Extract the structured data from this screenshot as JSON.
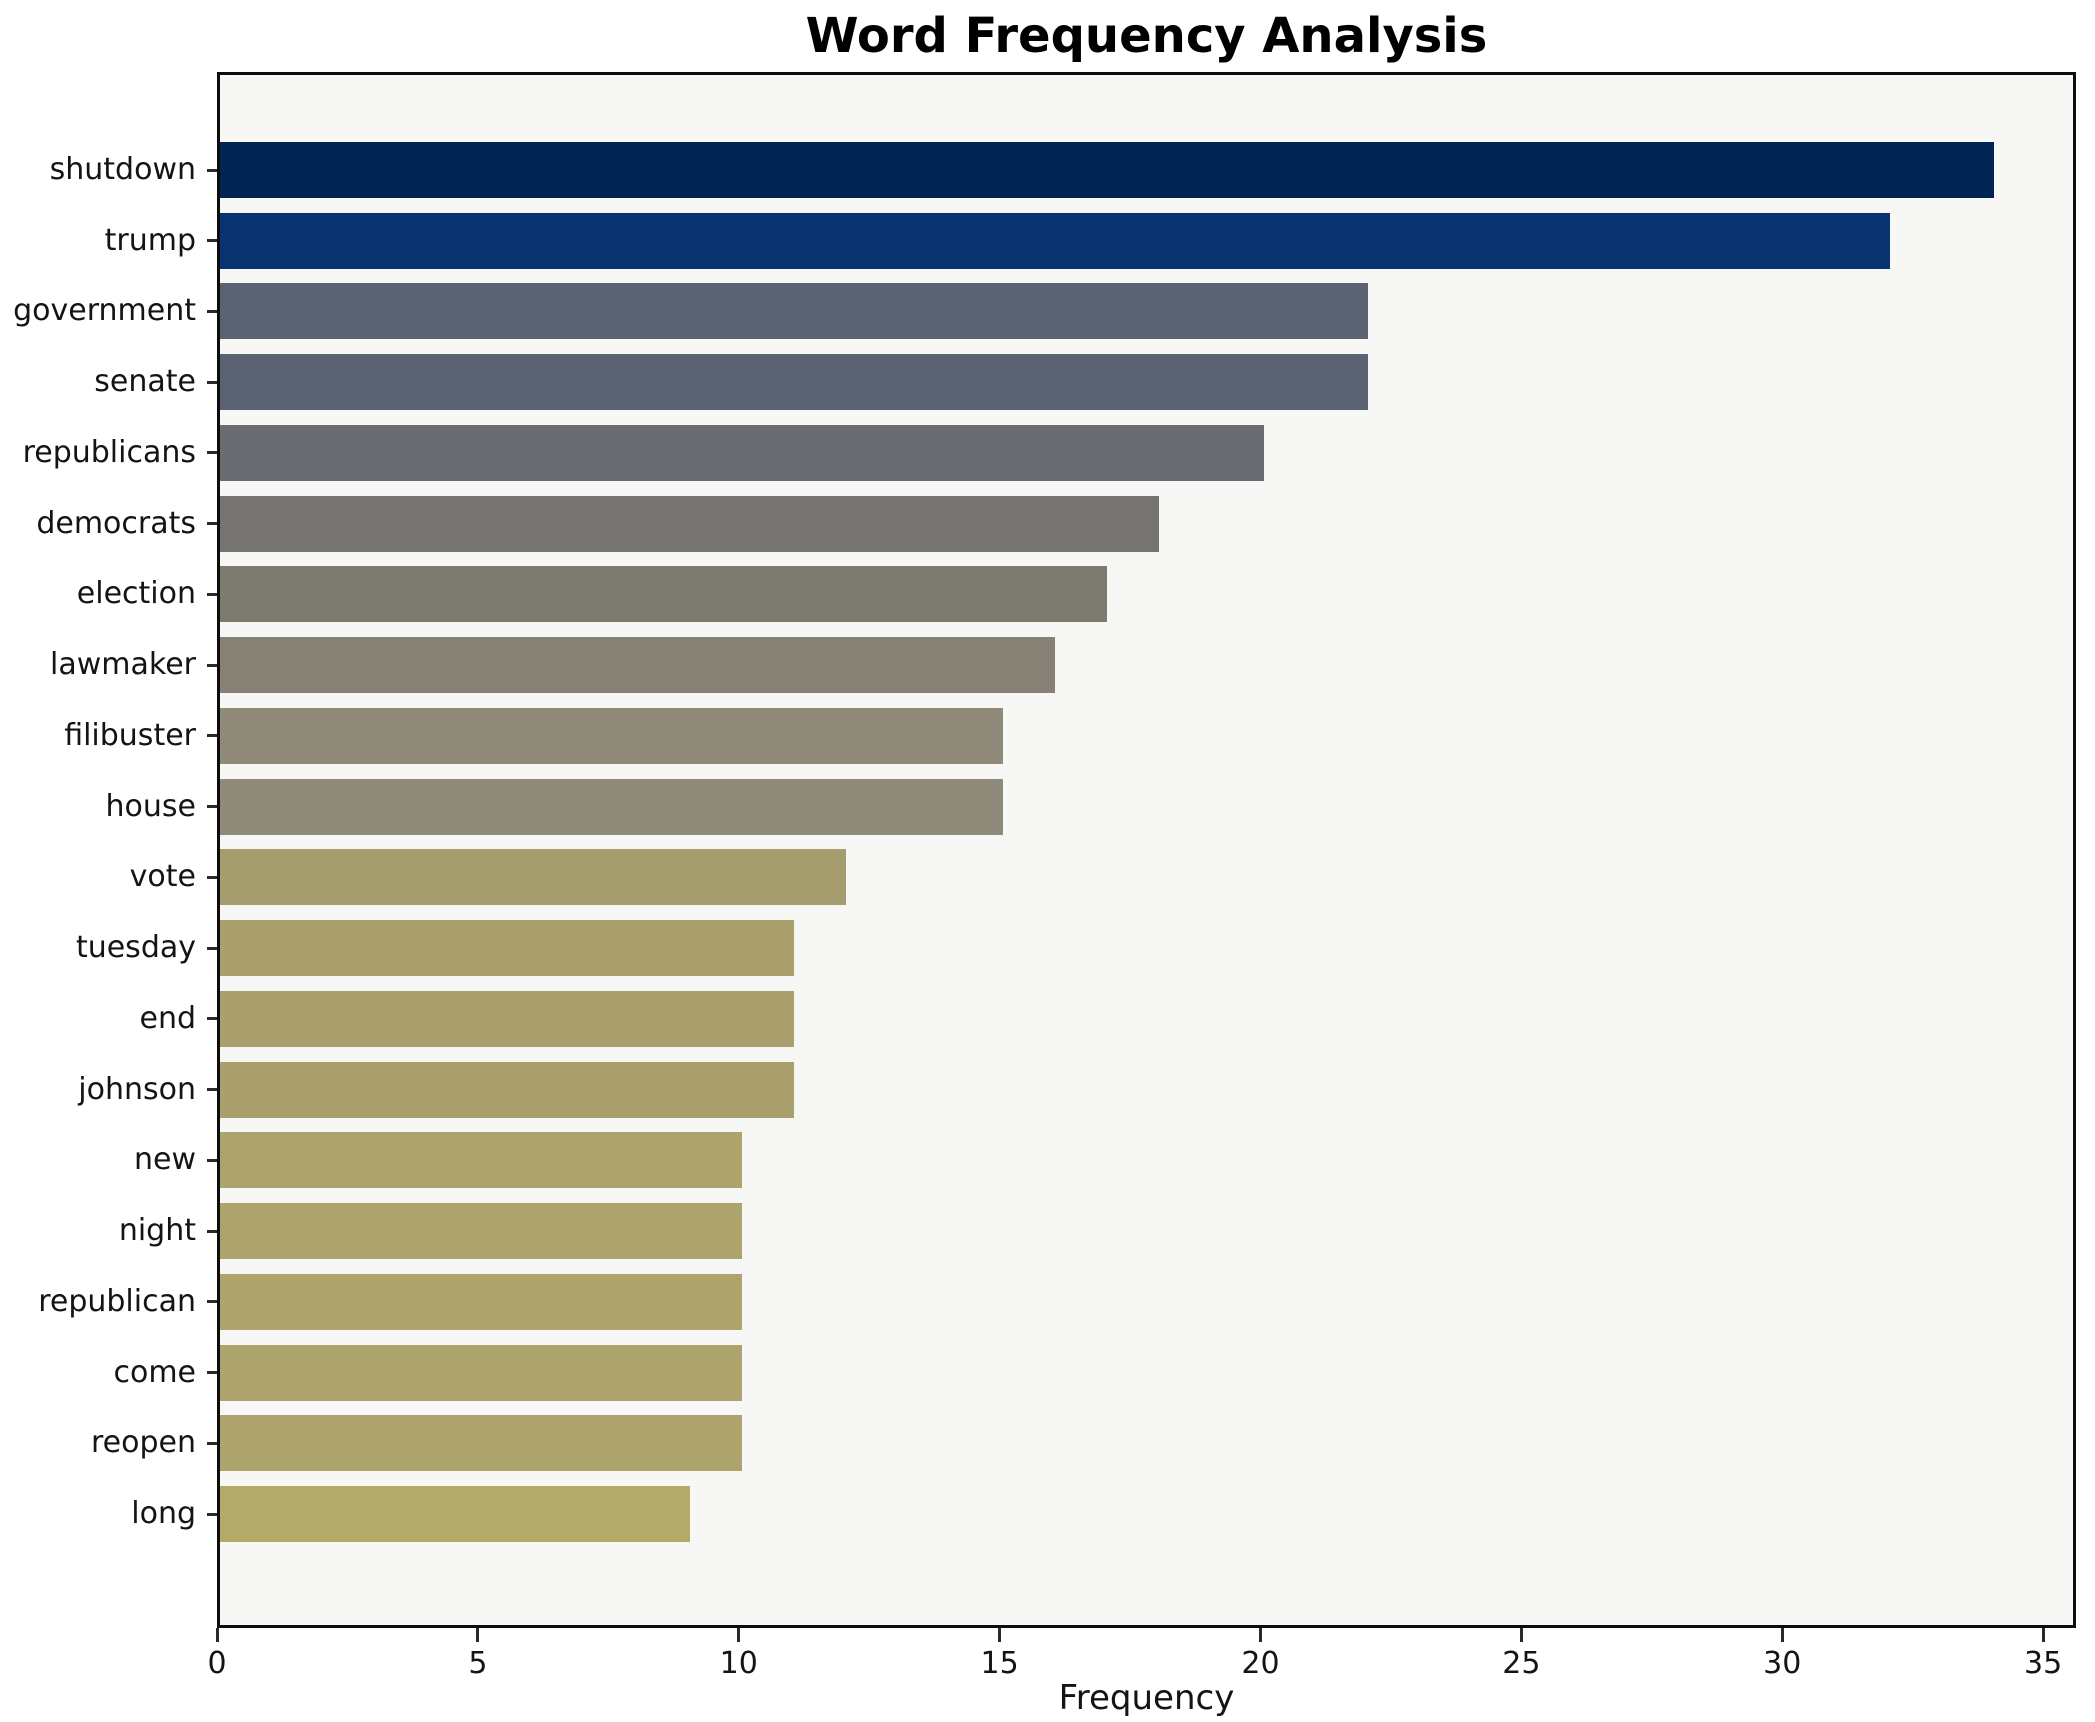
{
  "title": "Word Frequency Analysis",
  "chart_data": {
    "type": "bar",
    "orientation": "horizontal",
    "title": "Word Frequency Analysis",
    "xlabel": "Frequency",
    "ylabel": "",
    "xlim": [
      0,
      35.63
    ],
    "x_ticks": [
      0,
      5,
      10,
      15,
      20,
      25,
      30,
      35
    ],
    "grid": false,
    "legend": "none",
    "plot_background": "#f7f7f6",
    "figure_background": "#ffffff",
    "spine_color": "#0d0d0d",
    "categories": [
      "shutdown",
      "trump",
      "government",
      "senate",
      "republicans",
      "democrats",
      "election",
      "lawmaker",
      "filibuster",
      "house",
      "vote",
      "tuesday",
      "end",
      "johnson",
      "new",
      "night",
      "republican",
      "come",
      "reopen",
      "long"
    ],
    "values": [
      34,
      32,
      22,
      22,
      20,
      18,
      17,
      16,
      15,
      15,
      12,
      11,
      11,
      11,
      10,
      10,
      10,
      10,
      10,
      9
    ],
    "bar_colors": [
      "#012452",
      "#08336e",
      "#5b6271",
      "#5b6271",
      "#6b6c71",
      "#767470",
      "#7d7a70",
      "#868174",
      "#8f8a79",
      "#8f8a79",
      "#a59d6e",
      "#a9a06e",
      "#a9a06e",
      "#a9a06e",
      "#ada46d",
      "#ada46d",
      "#ada46d",
      "#ada46d",
      "#ada46d",
      "#b3aa69"
    ]
  }
}
